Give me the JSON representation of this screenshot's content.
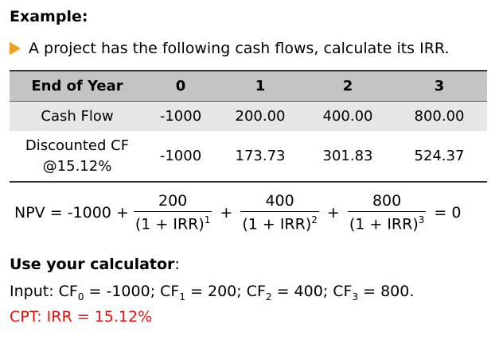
{
  "heading": "Example:",
  "bullet": "A project has the following cash flows, calculate its IRR.",
  "table": {
    "headers": [
      "End of Year",
      "0",
      "1",
      "2",
      "3"
    ],
    "rows": [
      {
        "label": "Cash Flow",
        "values": [
          "-1000",
          "200.00",
          "400.00",
          "800.00"
        ]
      },
      {
        "label_line1": "Discounted CF",
        "label_line2": "@15.12%",
        "values": [
          "-1000",
          "173.73",
          "301.83",
          "524.37"
        ]
      }
    ]
  },
  "formula": {
    "lhs": "NPV = -1000 +",
    "terms": [
      {
        "numerator": "200",
        "denominator": "(1 + IRR)",
        "power": "1"
      },
      {
        "numerator": "400",
        "denominator": "(1 + IRR)",
        "power": "2"
      },
      {
        "numerator": "800",
        "denominator": "(1 + IRR)",
        "power": "3"
      }
    ],
    "plus": "+",
    "rhs": "= 0"
  },
  "calculator": {
    "heading_bold": "Use your calculator",
    "heading_colon": ":",
    "input_prefix": "Input: CF",
    "cf0_sub": "0",
    "cf0_val": " = -1000; CF",
    "cf1_sub": "1",
    "cf1_val": " = 200; CF",
    "cf2_sub": "2",
    "cf2_val": " = 400; CF",
    "cf3_sub": "3",
    "cf3_val": " = 800.",
    "cpt": "CPT: IRR = 15.12%"
  },
  "colors": {
    "arrow": "#f0a020",
    "cpt": "#e81010",
    "header_bg": "#c4c4c4",
    "row_bg": "#e6e6e6"
  }
}
